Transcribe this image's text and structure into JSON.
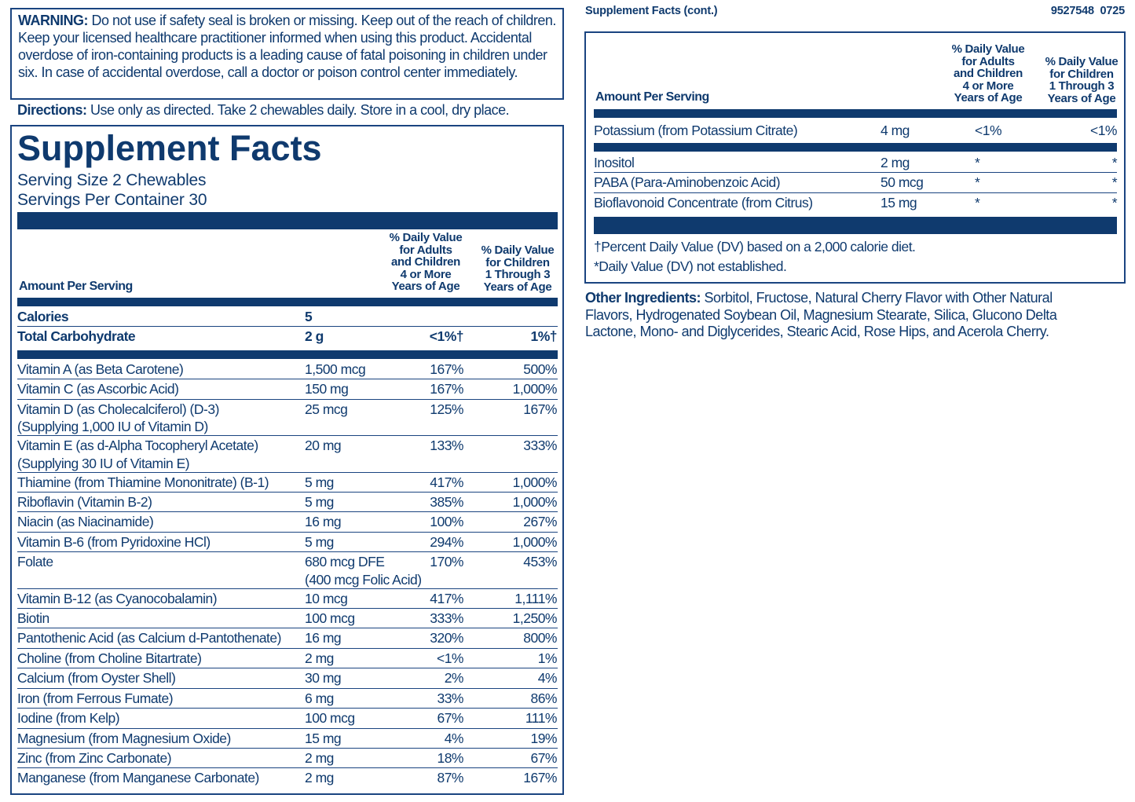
{
  "warning": {
    "label": "WARNING:",
    "text": "Do not use if safety seal is broken or missing. Keep out of the reach of children. Keep your licensed healthcare practitioner informed when using this product. Accidental overdose of iron-containing products is a leading cause of fatal poisoning in children under six. In case of accidental overdose, call a doctor or poison control center immediately."
  },
  "directions": {
    "label": "Directions:",
    "text": "Use only as directed. Take 2 chewables daily. Store in a cool, dry place."
  },
  "facts": {
    "title": "Supplement Facts",
    "serving_size": "Serving Size 2 Chewables",
    "servings": "Servings Per Container 30",
    "header": {
      "amount": "Amount Per Serving",
      "dv_adults": [
        "% Daily Value",
        "for Adults",
        "and Children",
        "4 or More",
        "Years of Age"
      ],
      "dv_children": [
        "% Daily Value",
        "for Children",
        "1 Through 3",
        "Years of Age"
      ]
    },
    "calorie_rows": [
      {
        "name": "Calories",
        "amount": "5"
      },
      {
        "name": "Total Carbohydrate",
        "amount": "2 g",
        "adults": "<1%†",
        "children": "1%†"
      }
    ],
    "rows": [
      {
        "name": "Vitamin A (as Beta Carotene)",
        "amount": "1,500 mcg",
        "adults": "167%",
        "children": "500%"
      },
      {
        "name": "Vitamin C (as Ascorbic Acid)",
        "amount": "150 mg",
        "adults": "167%",
        "children": "1,000%"
      },
      {
        "name": "Vitamin D (as Cholecalciferol) (D-3)",
        "name_note": "(Supplying 1,000 IU of Vitamin D)",
        "amount": "25 mcg",
        "adults": "125%",
        "children": "167%"
      },
      {
        "name": "Vitamin E (as d-Alpha Tocopheryl Acetate)",
        "name_note": "(Supplying 30 IU of Vitamin E)",
        "amount": "20 mg",
        "adults": "133%",
        "children": "333%"
      },
      {
        "name": "Thiamine (from Thiamine Mononitrate) (B-1)",
        "amount": "5 mg",
        "adults": "417%",
        "children": "1,000%"
      },
      {
        "name": "Riboflavin (Vitamin B-2)",
        "amount": "5 mg",
        "adults": "385%",
        "children": "1,000%"
      },
      {
        "name": "Niacin (as Niacinamide)",
        "amount": "16 mg",
        "adults": "100%",
        "children": "267%"
      },
      {
        "name": "Vitamin B-6 (from Pyridoxine HCl)",
        "amount": "5 mg",
        "adults": "294%",
        "children": "1,000%"
      },
      {
        "name": "Folate",
        "amount": "680 mcg DFE",
        "amount_note": "(400 mcg Folic Acid)",
        "adults": "170%",
        "children": "453%"
      },
      {
        "name": "Vitamin B-12 (as Cyanocobalamin)",
        "amount": "10 mcg",
        "adults": "417%",
        "children": "1,111%"
      },
      {
        "name": "Biotin",
        "amount": "100 mcg",
        "adults": "333%",
        "children": "1,250%"
      },
      {
        "name": "Pantothenic Acid (as Calcium d-Pantothenate)",
        "amount": "16 mg",
        "adults": "320%",
        "children": "800%"
      },
      {
        "name": "Choline (from Choline Bitartrate)",
        "amount": "2 mg",
        "adults": "<1%",
        "children": "1%"
      },
      {
        "name": "Calcium (from Oyster Shell)",
        "amount": "30 mg",
        "adults": "2%",
        "children": "4%"
      },
      {
        "name": "Iron (from Ferrous Fumate)",
        "amount": "6 mg",
        "adults": "33%",
        "children": "86%"
      },
      {
        "name": "Iodine (from Kelp)",
        "amount": "100 mcg",
        "adults": "67%",
        "children": "111%"
      },
      {
        "name": "Magnesium (from Magnesium Oxide)",
        "amount": "15 mg",
        "adults": "4%",
        "children": "19%"
      },
      {
        "name": "Zinc (from Zinc Carbonate)",
        "amount": "2 mg",
        "adults": "18%",
        "children": "67%"
      },
      {
        "name": "Manganese (from Manganese Carbonate)",
        "amount": "2 mg",
        "adults": "87%",
        "children": "167%"
      }
    ]
  },
  "facts_cont": {
    "title": "Supplement Facts (cont.)",
    "code": "9527548  0725",
    "header": {
      "amount": "Amount Per Serving",
      "dv_adults": [
        "% Daily Value",
        "for Adults",
        "and Children",
        "4 or More",
        "Years of Age"
      ],
      "dv_children": [
        "% Daily Value",
        "for Children",
        "1 Through 3",
        "Years of Age"
      ]
    },
    "rows_top": [
      {
        "name": "Potassium (from Potassium Citrate)",
        "amount": "4 mg",
        "adults": "<1%",
        "children": "<1%"
      }
    ],
    "rows": [
      {
        "name": "Inositol",
        "amount": "2 mg",
        "adults": "*",
        "children": "*"
      },
      {
        "name": "PABA (Para-Aminobenzoic Acid)",
        "amount": "50 mcg",
        "adults": "*",
        "children": "*"
      },
      {
        "name": "Bioflavonoid Concentrate (from Citrus)",
        "amount": "15 mg",
        "adults": "*",
        "children": "*"
      }
    ],
    "footnotes": [
      "†Percent Daily Value (DV) based on a 2,000 calorie diet.",
      "*Daily Value (DV) not established."
    ]
  },
  "other_ingredients": {
    "label": "Other Ingredients:",
    "text": "Sorbitol, Fructose, Natural Cherry Flavor with Other Natural Flavors, Hydrogenated Soybean Oil, Magnesium Stearate, Silica, Glucono Delta Lactone, Mono- and Diglycerides, Stearic Acid, Rose Hips, and Acerola Cherry."
  }
}
